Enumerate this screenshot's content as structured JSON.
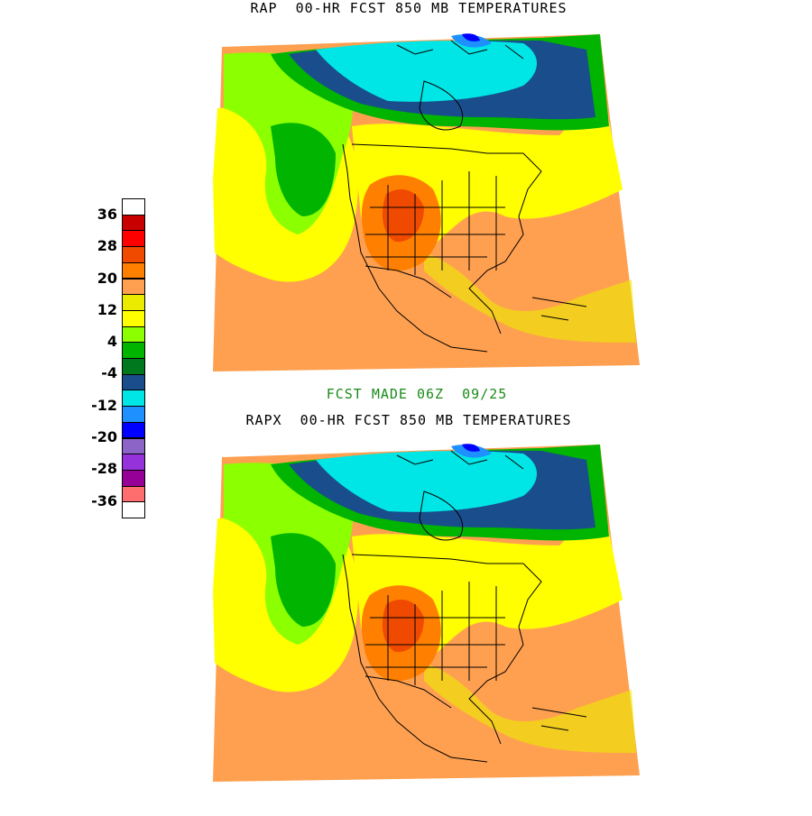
{
  "titles": {
    "top": "RAP  00-HR FCST 850 MB TEMPERATURES",
    "bottom": "RAPX  00-HR FCST 850 MB TEMPERATURES",
    "forecast_made": "FCST MADE 06Z  09/25"
  },
  "legend": {
    "labels": [
      "36",
      "28",
      "20",
      "12",
      "4",
      "-4",
      "-12",
      "-20",
      "-28",
      "-36"
    ],
    "colors": [
      "#ffffff",
      "#c80000",
      "#ff0000",
      "#f04a00",
      "#ff8000",
      "#ffa050",
      "#ebeb00",
      "#ffff00",
      "#8cff00",
      "#00b400",
      "#00781e",
      "#194d8c",
      "#00e6e6",
      "#1e90ff",
      "#0000ff",
      "#8c64c8",
      "#9632dc",
      "#960096",
      "#ff6e6e",
      "#ffffff"
    ]
  },
  "map_colors": {
    "ocean_warm": "#ffa050",
    "warm_orange": "#ff8000",
    "hot_red": "#f04a00",
    "yellow": "#ffff00",
    "yellow2": "#ebeb00",
    "light_green": "#8cff00",
    "green": "#00b400",
    "dark_green": "#00781e",
    "navy": "#194d8c",
    "cyan": "#00e6e6",
    "blue": "#1e90ff",
    "deep_blue": "#0000ff"
  }
}
